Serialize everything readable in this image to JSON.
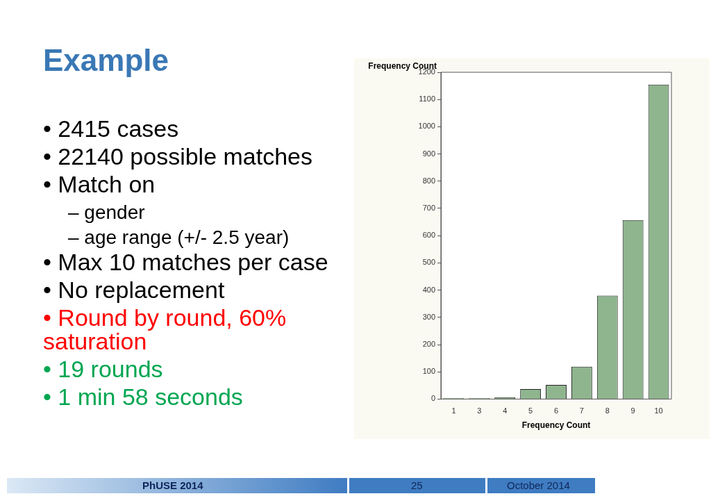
{
  "chart_data": {
    "type": "bar",
    "title": "Example",
    "xlabel": "Frequency Count",
    "ylabel": "Frequency Count",
    "categories": [
      "1",
      "3",
      "4",
      "5",
      "6",
      "7",
      "8",
      "9",
      "10"
    ],
    "values": [
      4,
      4,
      7,
      37,
      52,
      119,
      380,
      657,
      1155
    ],
    "color": "#8fb58f",
    "ylim": [
      0,
      1200
    ],
    "yticks": [
      0,
      100,
      200,
      300,
      400,
      500,
      600,
      700,
      800,
      900,
      1000,
      1100,
      1200
    ],
    "grid": false,
    "legend": false,
    "annotations": [
      "• 2415 cases",
      "• 22140 possible matches",
      "• Match on",
      "– gender",
      "– age range (+/- 2.5 year)",
      "• Max 10 matches per case",
      "• No replacement",
      "• Round by round, 60% saturation",
      "• 19 rounds",
      "• 1 min 58 seconds",
      "PhUSE 2014",
      "25",
      "October 2014"
    ]
  }
}
